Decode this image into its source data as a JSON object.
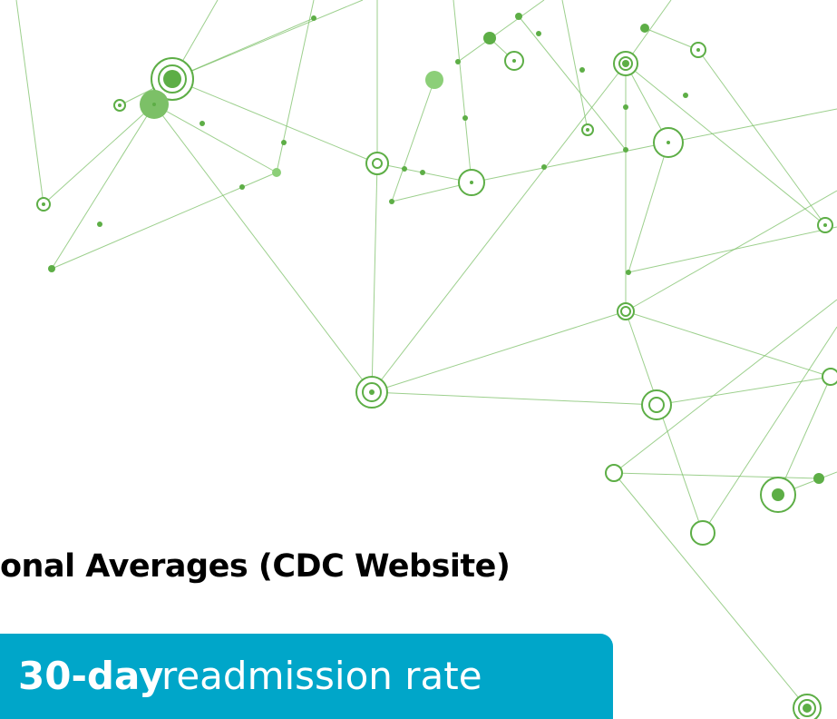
{
  "header": {
    "title": "onal Averages (CDC Website)"
  },
  "banner": {
    "bold": "30-day",
    "text": "readmission rate"
  }
}
